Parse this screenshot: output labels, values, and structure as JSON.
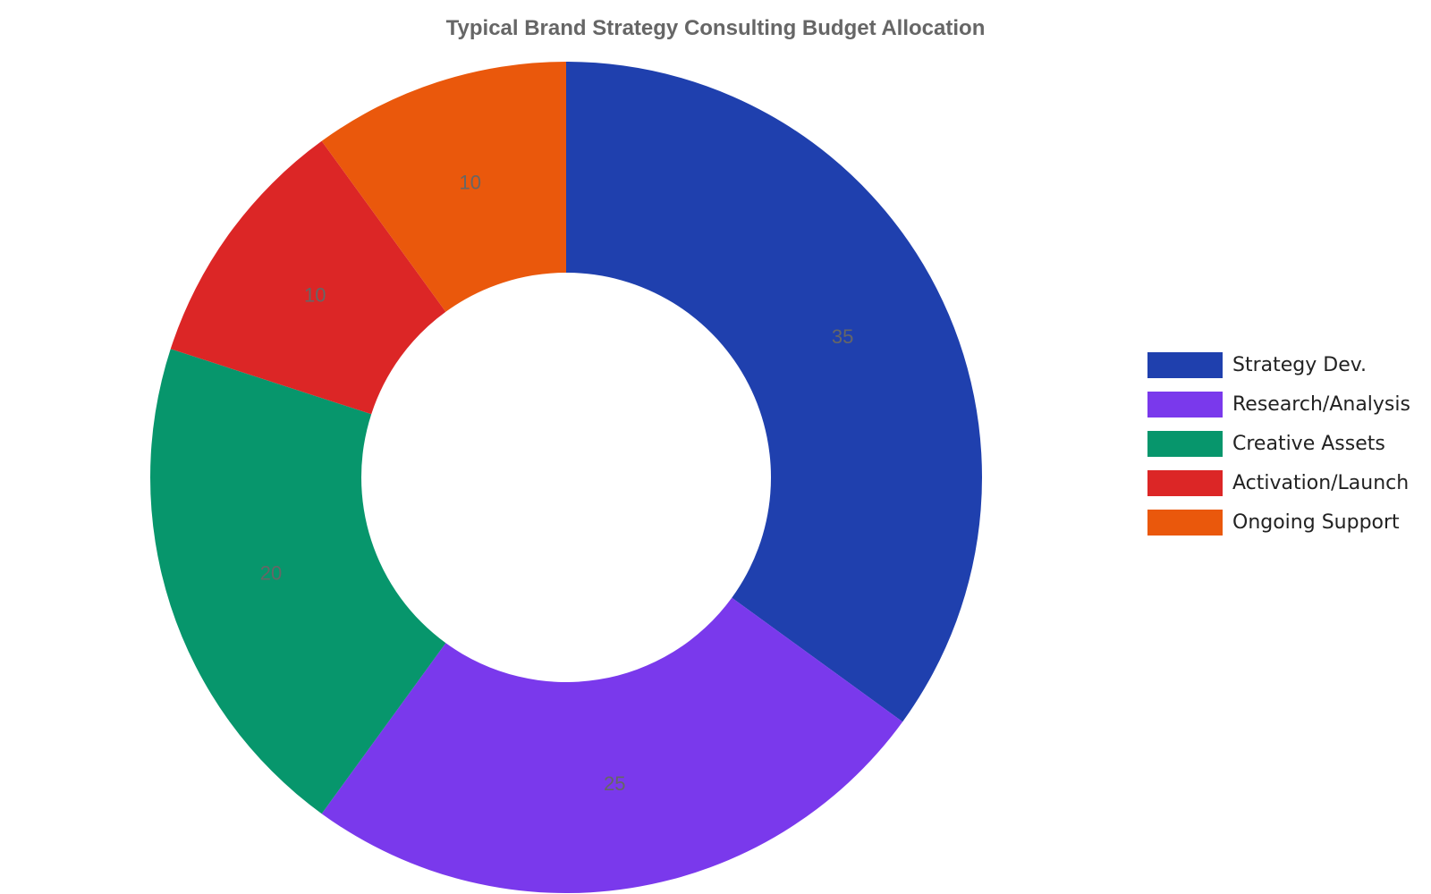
{
  "chart_data": {
    "type": "pie",
    "title": "Typical Brand Strategy Consulting Budget Allocation",
    "donut": true,
    "categories": [
      "Strategy Dev.",
      "Research/Analysis",
      "Creative Assets",
      "Activation/Launch",
      "Ongoing Support"
    ],
    "values": [
      35,
      25,
      20,
      10,
      10
    ],
    "colors": [
      "#1f40ae",
      "#7a39ec",
      "#07966c",
      "#dc2626",
      "#ea580c"
    ],
    "legend_position": "right",
    "show_value_labels": true
  }
}
